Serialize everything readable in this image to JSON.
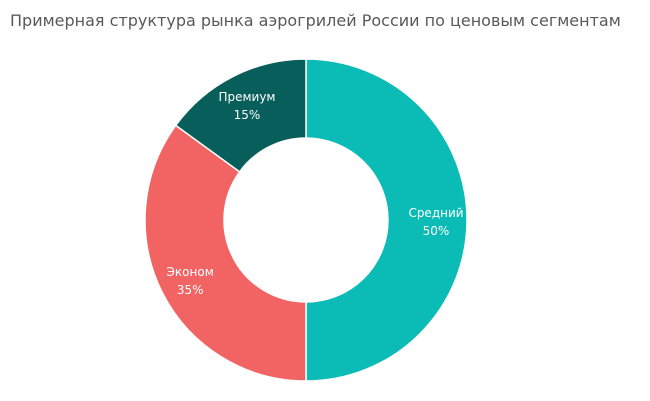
{
  "chart_data": {
    "type": "pie",
    "title": "Примерная структура рынка аэрогрилей России по ценовым сегментам",
    "donut": true,
    "start": "top",
    "direction": "clockwise",
    "slices": [
      {
        "name": "Средний",
        "value": 50,
        "label": "50%",
        "color": "#0bbbb6"
      },
      {
        "name": "Эконом",
        "value": 35,
        "label": "35%",
        "color": "#f26464"
      },
      {
        "name": "Премиум",
        "value": 15,
        "label": "15%",
        "color": "#075e5a"
      }
    ]
  }
}
